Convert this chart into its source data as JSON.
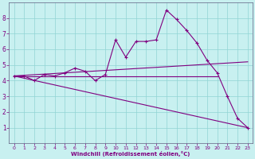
{
  "xlabel": "Windchill (Refroidissement éolien,°C)",
  "bg_color": "#c8f0f0",
  "line_color": "#800080",
  "grid_color": "#90d4d4",
  "text_color": "#800080",
  "spine_color": "#606080",
  "xlim": [
    -0.5,
    23.5
  ],
  "ylim": [
    0,
    9
  ],
  "xticks": [
    0,
    1,
    2,
    3,
    4,
    5,
    6,
    7,
    8,
    9,
    10,
    11,
    12,
    13,
    14,
    15,
    16,
    17,
    18,
    19,
    20,
    21,
    22,
    23
  ],
  "yticks": [
    1,
    2,
    3,
    4,
    5,
    6,
    7,
    8
  ],
  "main_x": [
    0,
    1,
    2,
    3,
    4,
    5,
    6,
    7,
    8,
    9,
    10,
    11,
    12,
    13,
    14,
    15,
    16,
    17,
    18,
    19,
    20,
    21,
    22,
    23
  ],
  "main_y": [
    4.3,
    4.3,
    4.0,
    4.4,
    4.3,
    4.5,
    4.8,
    4.6,
    4.0,
    4.4,
    6.6,
    5.5,
    6.5,
    6.5,
    6.6,
    8.5,
    7.9,
    7.2,
    6.4,
    5.3,
    4.5,
    3.0,
    1.6,
    1.0
  ],
  "trend1_x": [
    0,
    23
  ],
  "trend1_y": [
    4.3,
    5.2
  ],
  "trend2_x": [
    0,
    23
  ],
  "trend2_y": [
    4.3,
    1.0
  ],
  "trend3_x": [
    0,
    20
  ],
  "trend3_y": [
    4.3,
    4.3
  ]
}
